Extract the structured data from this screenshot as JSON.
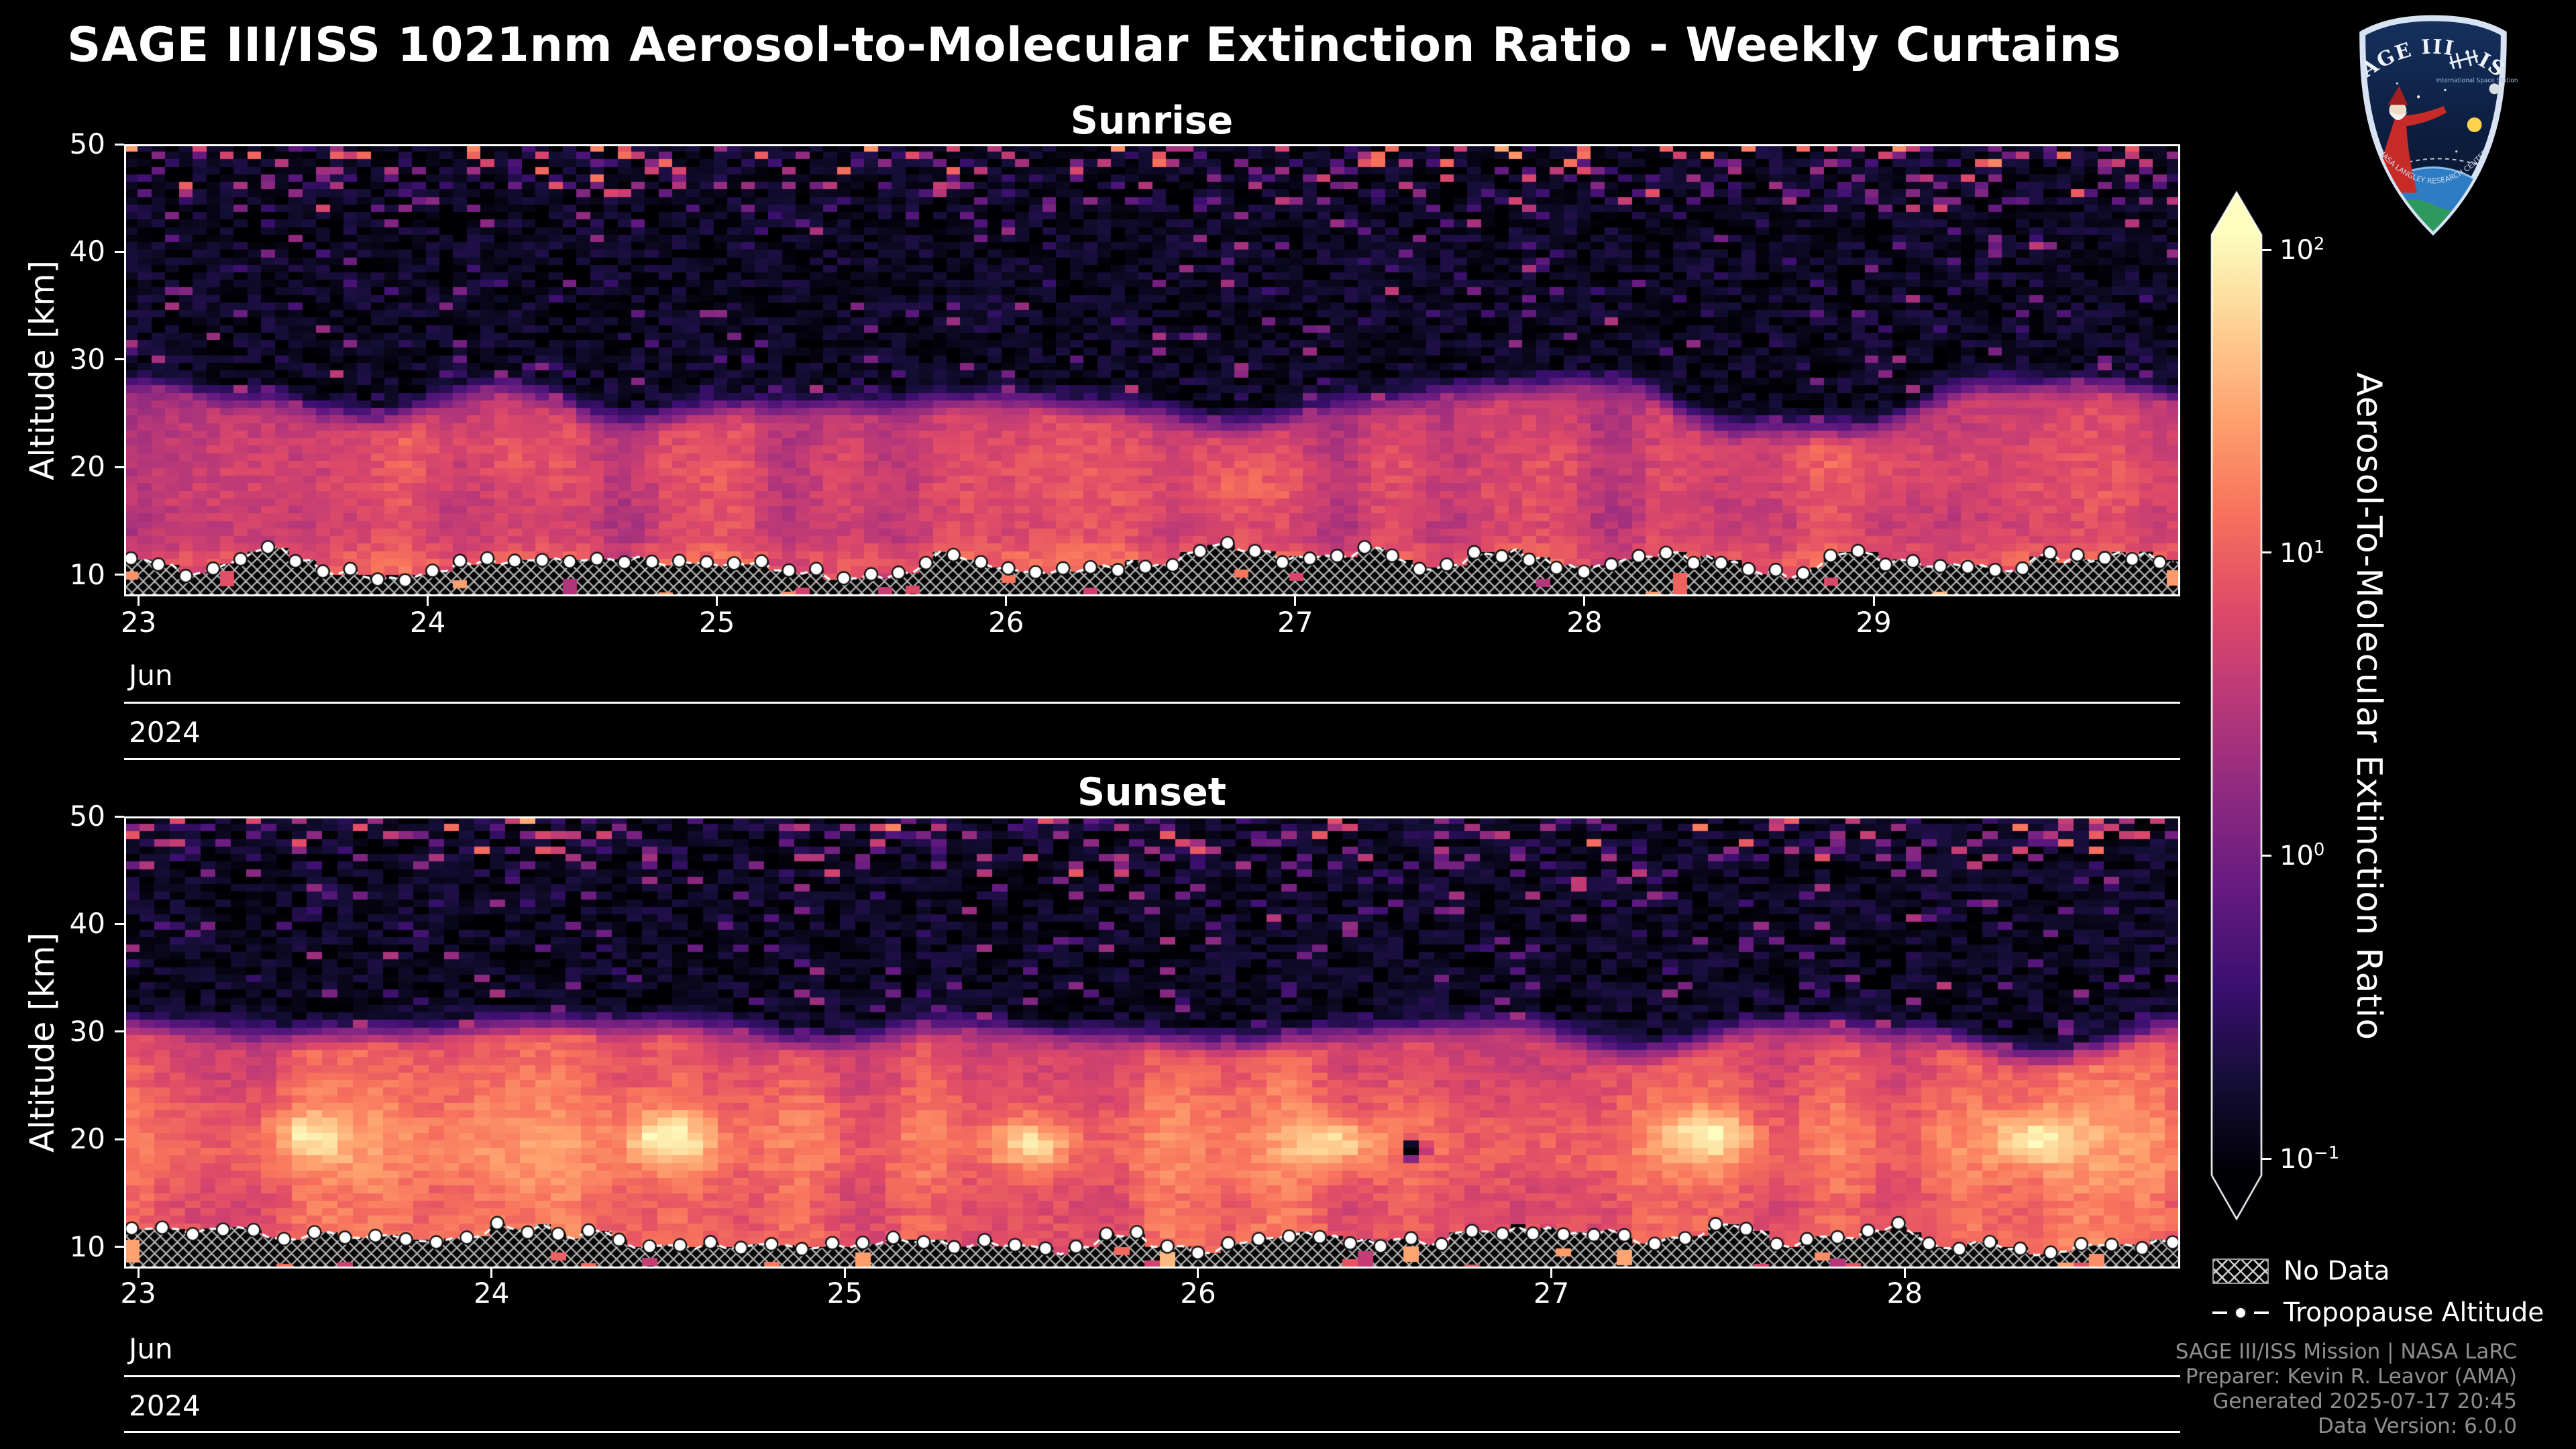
{
  "page": {
    "title": "SAGE III/ISS 1021nm Aerosol-to-Molecular Extinction Ratio - Weekly Curtains"
  },
  "logo": {
    "title_text": "SAGE III · ISS",
    "subtitle_text": "International Space Station",
    "footer_text": "NASA LANGLEY RESEARCH CENTER"
  },
  "legend": {
    "items": [
      {
        "id": "no-data",
        "label": "No Data",
        "symbol": "hatched-box"
      },
      {
        "id": "tropopause",
        "label": "Tropopause Altitude",
        "symbol": "dashed-line-with-marker"
      }
    ]
  },
  "credits": {
    "lines": [
      "SAGE III/ISS Mission | NASA LaRC",
      "Preparer: Kevin R. Leavor (AMA)",
      "Generated 2025-07-17 20:45",
      "Data Version: 6.0.0"
    ]
  },
  "chart_data": {
    "type": "heatmap",
    "title": "SAGE III/ISS 1021nm Aerosol-to-Molecular Extinction Ratio - Weekly Curtains",
    "colorbar": {
      "label": "Aerosol-To-Molecular Extinction Ratio",
      "scale": "log",
      "tick_exponents": [
        2,
        1,
        0,
        -1
      ],
      "tick_values": [
        100,
        10,
        1,
        0.1
      ],
      "range_log10": [
        -1,
        2
      ],
      "extend": "both",
      "colormap": "magma",
      "colormap_stops": [
        [
          0,
          "#000004"
        ],
        [
          0.1,
          "#140e36"
        ],
        [
          0.2,
          "#3b0f70"
        ],
        [
          0.3,
          "#641a80"
        ],
        [
          0.4,
          "#8c2981"
        ],
        [
          0.5,
          "#b73779"
        ],
        [
          0.6,
          "#de4968"
        ],
        [
          0.7,
          "#f7705c"
        ],
        [
          0.8,
          "#fe9f6d"
        ],
        [
          0.9,
          "#fecf92"
        ],
        [
          1,
          "#fcfdbf"
        ]
      ]
    },
    "panels": [
      {
        "title": "Sunrise",
        "ylabel": "Altitude [km]",
        "y_range_km": [
          8,
          50
        ],
        "y_ticks": [
          10,
          20,
          30,
          40,
          50
        ],
        "x_ticks": [
          23,
          24,
          25,
          26,
          27,
          28,
          29
        ],
        "x_range_days": [
          22.95,
          30.06
        ],
        "month_label": "Jun",
        "year_label": "2024",
        "columns": 150,
        "row_km": 0.7,
        "seed": 20240623,
        "tropopause_km": {
          "base": 11.1,
          "variation": 1.4
        },
        "aerosol_layer": {
          "top_km": 26.0,
          "top_variation_km": 2.4,
          "base_log10": 0.5,
          "peak_km": 19,
          "peak_amp_log10": 0.2,
          "peak_width_km": 7,
          "low_peak_km": 11,
          "low_amp_log10": 0.35,
          "low_width_km": 2,
          "column_variation_log10": 0.22,
          "hotspots": [
            {
              "t": 0.18,
              "a": 22,
              "amp": 0.18,
              "st": 0.05,
              "sa": 3
            },
            {
              "t": 0.55,
              "a": 18,
              "amp": 0.15,
              "st": 0.04,
              "sa": 3
            },
            {
              "t": 0.85,
              "a": 21,
              "amp": 0.15,
              "st": 0.05,
              "sa": 3
            }
          ]
        },
        "background_log10": -0.85,
        "below_tropopause_speck_prob": 0.15
      },
      {
        "title": "Sunset",
        "ylabel": "Altitude [km]",
        "y_range_km": [
          8,
          50
        ],
        "y_ticks": [
          10,
          20,
          30,
          40,
          50
        ],
        "x_ticks": [
          23,
          24,
          25,
          26,
          27,
          28
        ],
        "x_range_days": [
          22.96,
          28.78
        ],
        "month_label": "Jun",
        "year_label": "2024",
        "columns": 135,
        "row_km": 0.7,
        "seed": 20240624,
        "tropopause_km": {
          "base": 10.9,
          "variation": 1.3
        },
        "aerosol_layer": {
          "top_km": 29.3,
          "top_variation_km": 1.6,
          "base_log10": 0.8,
          "peak_km": 19.5,
          "peak_amp_log10": 0.35,
          "peak_width_km": 6,
          "low_peak_km": 11,
          "low_amp_log10": 0.15,
          "low_width_km": 2,
          "column_variation_log10": 0.26,
          "hotspots": [
            {
              "t": 0.09,
              "a": 20.3,
              "amp": 0.6,
              "st": 0.02,
              "sa": 2.2
            },
            {
              "t": 0.265,
              "a": 20.0,
              "amp": 0.85,
              "st": 0.02,
              "sa": 2.4
            },
            {
              "t": 0.44,
              "a": 19.6,
              "amp": 0.8,
              "st": 0.018,
              "sa": 2.2
            },
            {
              "t": 0.59,
              "a": 19.8,
              "amp": 0.75,
              "st": 0.02,
              "sa": 2.2
            },
            {
              "t": 0.77,
              "a": 20.2,
              "amp": 0.8,
              "st": 0.022,
              "sa": 2.4
            },
            {
              "t": 0.93,
              "a": 20.0,
              "amp": 0.75,
              "st": 0.02,
              "sa": 2.2
            },
            {
              "t": 0.627,
              "a": 19.0,
              "amp": -3.0,
              "st": 0.005,
              "sa": 0.8
            }
          ]
        },
        "background_log10": -0.85,
        "below_tropopause_speck_prob": 0.2
      }
    ]
  }
}
